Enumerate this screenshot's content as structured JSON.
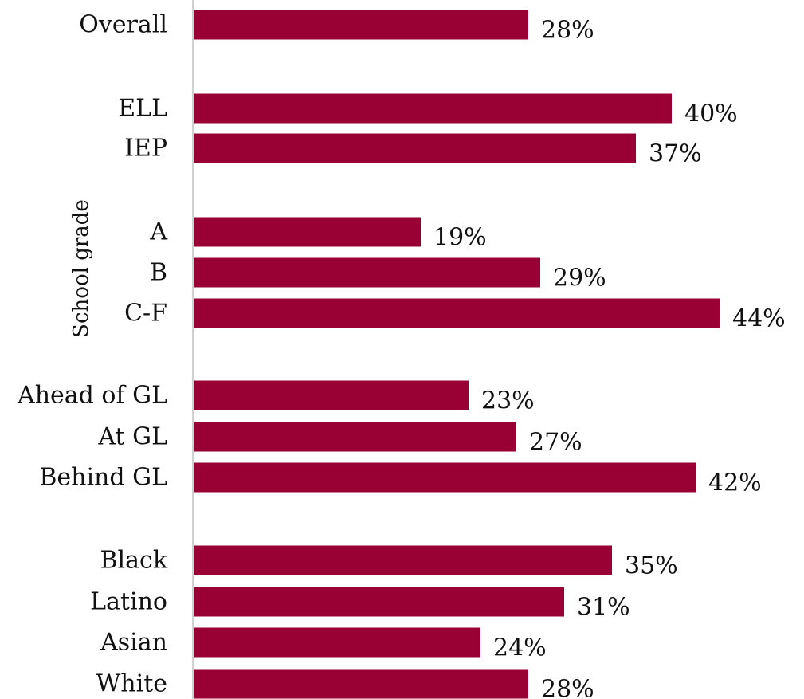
{
  "chart_data": {
    "type": "bar",
    "orientation": "horizontal",
    "categories": [
      "Overall",
      "ELL",
      "IEP",
      "A",
      "B",
      "C-F",
      "Ahead of GL",
      "At GL",
      "Behind GL",
      "Black",
      "Latino",
      "Asian",
      "White"
    ],
    "values": [
      28,
      40,
      37,
      19,
      29,
      44,
      23,
      27,
      42,
      35,
      31,
      24,
      28
    ],
    "value_labels": [
      "28%",
      "40%",
      "37%",
      "19%",
      "29%",
      "44%",
      "23%",
      "27%",
      "42%",
      "35%",
      "31%",
      "24%",
      "28%"
    ],
    "group_labels": [
      {
        "text": "School grade",
        "categories": [
          "A",
          "B",
          "C-F"
        ]
      }
    ],
    "bar_color": "#990033",
    "axis_color": "#d0d0d0",
    "grid": false,
    "legend": "none"
  }
}
